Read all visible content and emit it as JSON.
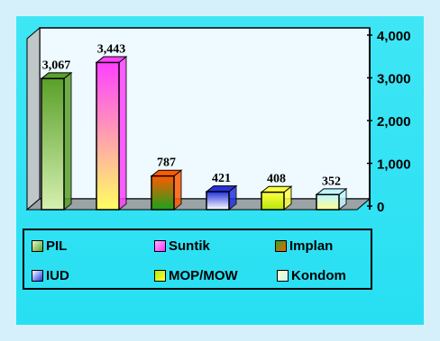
{
  "chart_data": {
    "type": "bar",
    "categories": [
      "PIL",
      "Suntik",
      "Implan",
      "IUD",
      "MOP/MOW",
      "Kondom"
    ],
    "values": [
      3067,
      3443,
      787,
      421,
      408,
      352
    ],
    "value_labels": [
      "3,067",
      "3,443",
      "787",
      "421",
      "408",
      "352"
    ],
    "ylim": [
      0,
      4000
    ],
    "yticks": [
      0,
      1000,
      2000,
      3000,
      4000
    ],
    "ytick_labels": [
      "0",
      "1,000",
      "2,000",
      "3,000",
      "4,000"
    ],
    "y_axis_side": "right",
    "legend_placement": "bottom",
    "bar_colors": [
      [
        "#d6f0b0",
        "#5aa02a"
      ],
      [
        "#ffff60",
        "#ff40ff"
      ],
      [
        "#1aa31a",
        "#ff5a00"
      ],
      [
        "#ffffff",
        "#2233dd"
      ],
      [
        "#b8e60a",
        "#ffff40"
      ],
      [
        "#ffff90",
        "#bff6ff"
      ]
    ],
    "grid": false
  },
  "legend": {
    "items": [
      {
        "label": "PIL",
        "swatch": [
          "#e8f8c8",
          "#5aa02a"
        ]
      },
      {
        "label": "Suntik",
        "swatch": [
          "#ffb0ff",
          "#ff30ff"
        ]
      },
      {
        "label": "Implan",
        "swatch": [
          "#2aa82a",
          "#ff5a00"
        ]
      },
      {
        "label": "IUD",
        "swatch": [
          "#ffffff",
          "#2233dd"
        ]
      },
      {
        "label": "MOP/MOW",
        "swatch": [
          "#b8e60a",
          "#ffff40"
        ]
      },
      {
        "label": "Kondom",
        "swatch": [
          "#ffffc0",
          "#c8f8ff"
        ]
      }
    ]
  }
}
